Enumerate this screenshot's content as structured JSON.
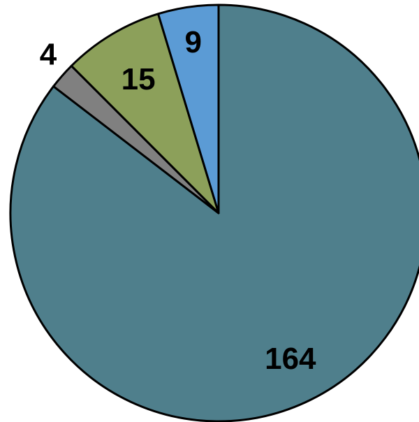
{
  "chart_data": {
    "type": "pie",
    "title": "",
    "start_angle_deg": 0,
    "direction": "clockwise",
    "legend": "none",
    "slices": [
      {
        "label": "164",
        "value": 164,
        "color": "#4F7F8C"
      },
      {
        "label": "4",
        "value": 4,
        "color": "#808080"
      },
      {
        "label": "15",
        "value": 15,
        "color": "#8CA05A"
      },
      {
        "label": "9",
        "value": 9,
        "color": "#5B9BD5"
      }
    ]
  }
}
